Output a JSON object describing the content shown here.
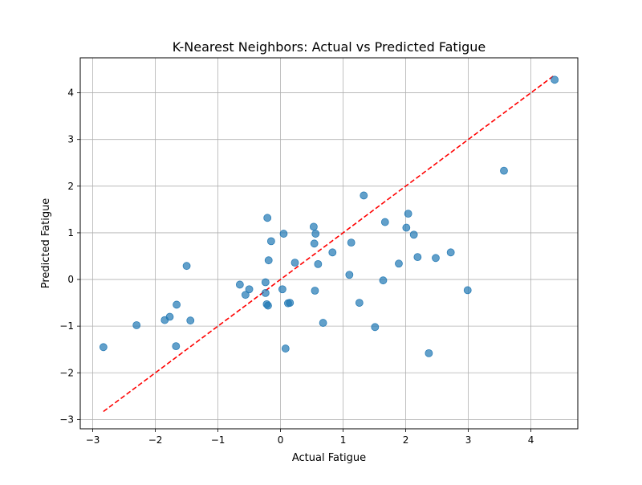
{
  "chart_data": {
    "type": "scatter",
    "title": "K-Nearest Neighbors: Actual vs Predicted Fatigue",
    "xlabel": "Actual Fatigue",
    "ylabel": "Predicted Fatigue",
    "xlim": [
      -3.2,
      4.75
    ],
    "ylim": [
      -3.2,
      4.75
    ],
    "grid": true,
    "xticks": [
      -3,
      -2,
      -1,
      0,
      1,
      2,
      3,
      4
    ],
    "yticks": [
      -3,
      -2,
      -1,
      0,
      1,
      2,
      3,
      4
    ],
    "xtick_labels": [
      "−3",
      "−2",
      "−1",
      "0",
      "1",
      "2",
      "3",
      "4"
    ],
    "ytick_labels": [
      "−3",
      "−2",
      "−1",
      "0",
      "1",
      "2",
      "3",
      "4"
    ],
    "point_color": "#1f77b4",
    "reference_line": {
      "style": "dashed",
      "color": "#ff0000",
      "x": [
        -2.83,
        4.37
      ],
      "y": [
        -2.83,
        4.37
      ]
    },
    "series": [
      {
        "points": [
          [
            -2.83,
            -1.45
          ],
          [
            -2.3,
            -0.98
          ],
          [
            -1.85,
            -0.87
          ],
          [
            -1.77,
            -0.8
          ],
          [
            -1.66,
            -0.54
          ],
          [
            -1.67,
            -1.43
          ],
          [
            -1.5,
            0.29
          ],
          [
            -1.44,
            -0.88
          ],
          [
            -0.65,
            -0.11
          ],
          [
            -0.56,
            -0.33
          ],
          [
            -0.5,
            -0.21
          ],
          [
            -0.24,
            -0.06
          ],
          [
            -0.24,
            -0.29
          ],
          [
            -0.22,
            -0.53
          ],
          [
            -0.2,
            -0.56
          ],
          [
            -0.21,
            1.32
          ],
          [
            -0.19,
            0.41
          ],
          [
            -0.15,
            0.82
          ],
          [
            0.03,
            -0.21
          ],
          [
            0.05,
            0.98
          ],
          [
            0.08,
            -1.48
          ],
          [
            0.12,
            -0.51
          ],
          [
            0.15,
            -0.5
          ],
          [
            0.23,
            0.36
          ],
          [
            0.53,
            1.13
          ],
          [
            0.54,
            0.77
          ],
          [
            0.56,
            0.98
          ],
          [
            0.55,
            -0.24
          ],
          [
            0.6,
            0.33
          ],
          [
            0.68,
            -0.93
          ],
          [
            0.83,
            0.58
          ],
          [
            1.1,
            0.1
          ],
          [
            1.13,
            0.79
          ],
          [
            1.26,
            -0.5
          ],
          [
            1.33,
            1.8
          ],
          [
            1.51,
            -1.02
          ],
          [
            1.64,
            -0.02
          ],
          [
            1.67,
            1.23
          ],
          [
            1.89,
            0.34
          ],
          [
            2.01,
            1.11
          ],
          [
            2.04,
            1.41
          ],
          [
            2.13,
            0.96
          ],
          [
            2.19,
            0.48
          ],
          [
            2.37,
            -1.58
          ],
          [
            2.48,
            0.46
          ],
          [
            2.72,
            0.58
          ],
          [
            2.99,
            -0.23
          ],
          [
            3.57,
            2.33
          ],
          [
            4.38,
            4.28
          ]
        ]
      }
    ]
  }
}
